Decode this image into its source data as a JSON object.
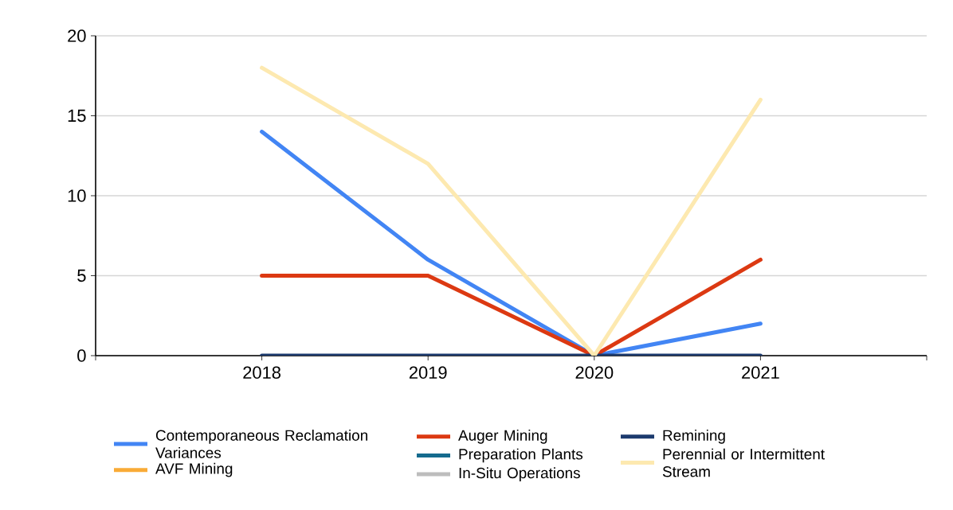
{
  "chart_data": {
    "type": "line",
    "categories": [
      "2018",
      "2019",
      "2020",
      "2021"
    ],
    "series": [
      {
        "name": "Contemporaneous Reclamation Variances",
        "color": "#4285f4",
        "values": [
          14,
          6,
          0,
          2
        ]
      },
      {
        "name": "AVF Mining",
        "color": "#f9ab37",
        "values": [
          null,
          null,
          null,
          null
        ]
      },
      {
        "name": "Auger Mining",
        "color": "#dc3912",
        "values": [
          5,
          5,
          0,
          6
        ]
      },
      {
        "name": "Preparation Plants",
        "color": "#156b8e",
        "values": [
          null,
          null,
          null,
          null
        ]
      },
      {
        "name": "In-Situ Operations",
        "color": "#bdbdbd",
        "values": [
          null,
          null,
          null,
          null
        ]
      },
      {
        "name": "Remining",
        "color": "#1c3a6e",
        "values": [
          0,
          0,
          0,
          0
        ]
      },
      {
        "name": "Perennial or Intermittent Stream",
        "color": "#fde9b0",
        "values": [
          18,
          12,
          0,
          16
        ]
      }
    ],
    "ylim": [
      0,
      20
    ],
    "yticks": [
      0,
      5,
      10,
      15,
      20
    ],
    "grid": "y",
    "legend": "bottom",
    "line_style": "solid",
    "marker": "none"
  }
}
